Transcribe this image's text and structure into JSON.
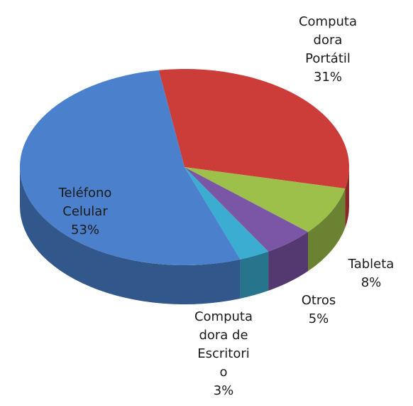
{
  "chart_data": {
    "type": "pie3d",
    "categories": [
      "Computa\ndora\nPortátil",
      "Tableta",
      "Otros",
      "Computa\ndora de\nEscritori\no",
      "Teléfono\nCelular"
    ],
    "values": [
      31,
      8,
      5,
      3,
      53
    ],
    "value_labels": [
      "31%",
      "8%",
      "5%",
      "3%",
      "53%"
    ],
    "colors": [
      "#cc3d3a",
      "#9dc04a",
      "#7b55a6",
      "#3aadd0",
      "#4a80cc"
    ]
  }
}
